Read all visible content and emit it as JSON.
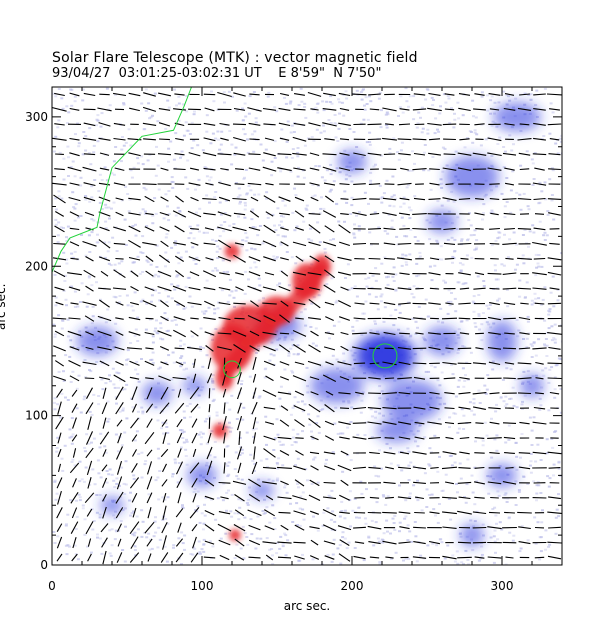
{
  "header": {
    "title": "Solar Flare Telescope (MTK) : vector magnetic field",
    "subtitle": "93/04/27  03:01:25-03:02:31 UT    E 8'59\"  N 7'50\""
  },
  "axes": {
    "xlabel": "arc sec.",
    "ylabel": "arc sec.",
    "xlim": [
      0,
      340
    ],
    "ylim": [
      0,
      320
    ],
    "xticks": [
      0,
      100,
      200,
      300
    ],
    "yticks": [
      0,
      100,
      200,
      300
    ]
  },
  "colors": {
    "positive_polarity": "#e6242a",
    "negative_polarity": "#2a37e0",
    "weak_field_noise": "#b9bbe8",
    "contour": "#22d33a",
    "vectors": "#000000"
  },
  "features": {
    "sunspot_contour_circles": [
      {
        "x": 120,
        "y": 131,
        "r": 5.5
      },
      {
        "x": 222,
        "y": 140,
        "r": 8
      }
    ],
    "limb_contour_points": [
      [
        0,
        196
      ],
      [
        6,
        210
      ],
      [
        12,
        219
      ],
      [
        30,
        226
      ],
      [
        32,
        236
      ],
      [
        40,
        266
      ],
      [
        60,
        287
      ],
      [
        81,
        291
      ],
      [
        88,
        307
      ],
      [
        93,
        320
      ]
    ]
  }
}
